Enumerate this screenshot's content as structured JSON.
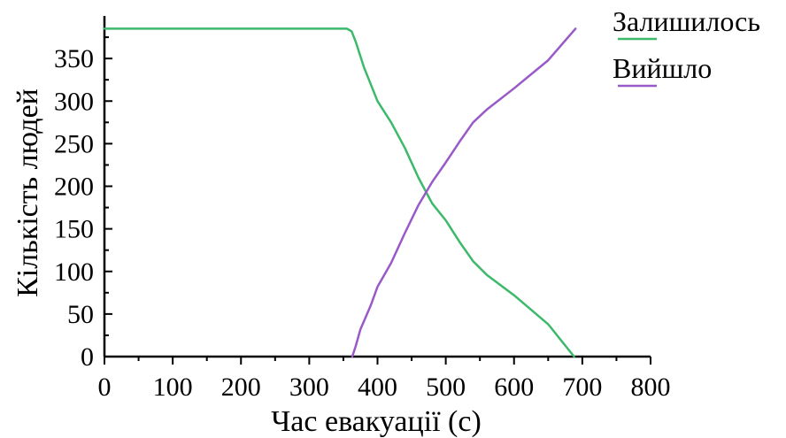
{
  "chart_data": {
    "type": "line",
    "title": "",
    "xlabel": "Час евакуації (с)",
    "ylabel": "Кількість людей",
    "xlim": [
      0,
      800
    ],
    "ylim": [
      0,
      400
    ],
    "x_ticks": [
      "0",
      "100",
      "200",
      "300",
      "400",
      "500",
      "600",
      "700",
      "800"
    ],
    "y_ticks": [
      "0",
      "50",
      "100",
      "150",
      "200",
      "250",
      "300",
      "350"
    ],
    "grid": false,
    "legend_position": "top-right",
    "series": [
      {
        "name": "Залишилось",
        "color": "#3cb96a",
        "points": [
          [
            0,
            385
          ],
          [
            355,
            385
          ],
          [
            362,
            382
          ],
          [
            368,
            370
          ],
          [
            380,
            340
          ],
          [
            400,
            300
          ],
          [
            420,
            275
          ],
          [
            440,
            245
          ],
          [
            460,
            210
          ],
          [
            480,
            180
          ],
          [
            500,
            160
          ],
          [
            520,
            135
          ],
          [
            540,
            112
          ],
          [
            560,
            96
          ],
          [
            600,
            72
          ],
          [
            650,
            38
          ],
          [
            688,
            0
          ]
        ]
      },
      {
        "name": "Вийшло",
        "color": "#9a59c8",
        "points": [
          [
            363,
            0
          ],
          [
            368,
            12
          ],
          [
            375,
            32
          ],
          [
            390,
            60
          ],
          [
            400,
            82
          ],
          [
            420,
            110
          ],
          [
            440,
            145
          ],
          [
            460,
            178
          ],
          [
            480,
            205
          ],
          [
            500,
            228
          ],
          [
            520,
            252
          ],
          [
            540,
            275
          ],
          [
            560,
            290
          ],
          [
            600,
            315
          ],
          [
            650,
            348
          ],
          [
            690,
            385
          ]
        ]
      }
    ]
  }
}
